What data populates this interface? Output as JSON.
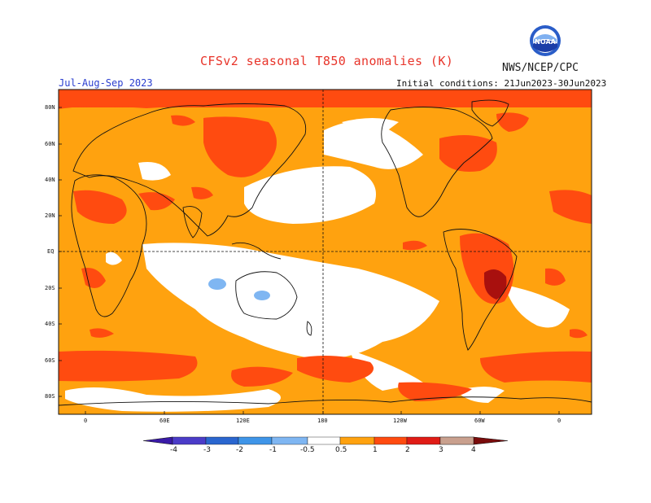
{
  "header": {
    "title": "CFSv2 seasonal T850 anomalies (K)",
    "agency": "NWS/NCEP/CPC",
    "season": "Jul-Aug-Sep 2023",
    "initial_conditions": "Initial conditions: 21Jun2023-30Jun2023"
  },
  "logo": {
    "text": "NOAA"
  },
  "map": {
    "lat_labels": [
      "80N",
      "60N",
      "40N",
      "20N",
      "EQ",
      "20S",
      "40S",
      "60S",
      "80S"
    ],
    "lon_labels": [
      "0",
      "60E",
      "120E",
      "180",
      "120W",
      "60W",
      "0"
    ]
  },
  "legend": {
    "levels": [
      "-4",
      "-3",
      "-2",
      "-1",
      "-0.5",
      "0.5",
      "1",
      "2",
      "3",
      "4"
    ],
    "colors": {
      "lt_-4": "#3a1aa8",
      "-4_-3": "#4b3cc8",
      "-3_-2": "#2a66cf",
      "-2_-1": "#3f95e8",
      "-1_-0.5": "#7fb6f2",
      "-0.5_0.5": "#ffffff",
      "0.5_1": "#ffa20f",
      "1_2": "#ff4b10",
      "2_3": "#e01c16",
      "3_4": "#a8100e",
      "gt_4": "#7a0c0c",
      "4_top": "#c9a08e"
    }
  }
}
